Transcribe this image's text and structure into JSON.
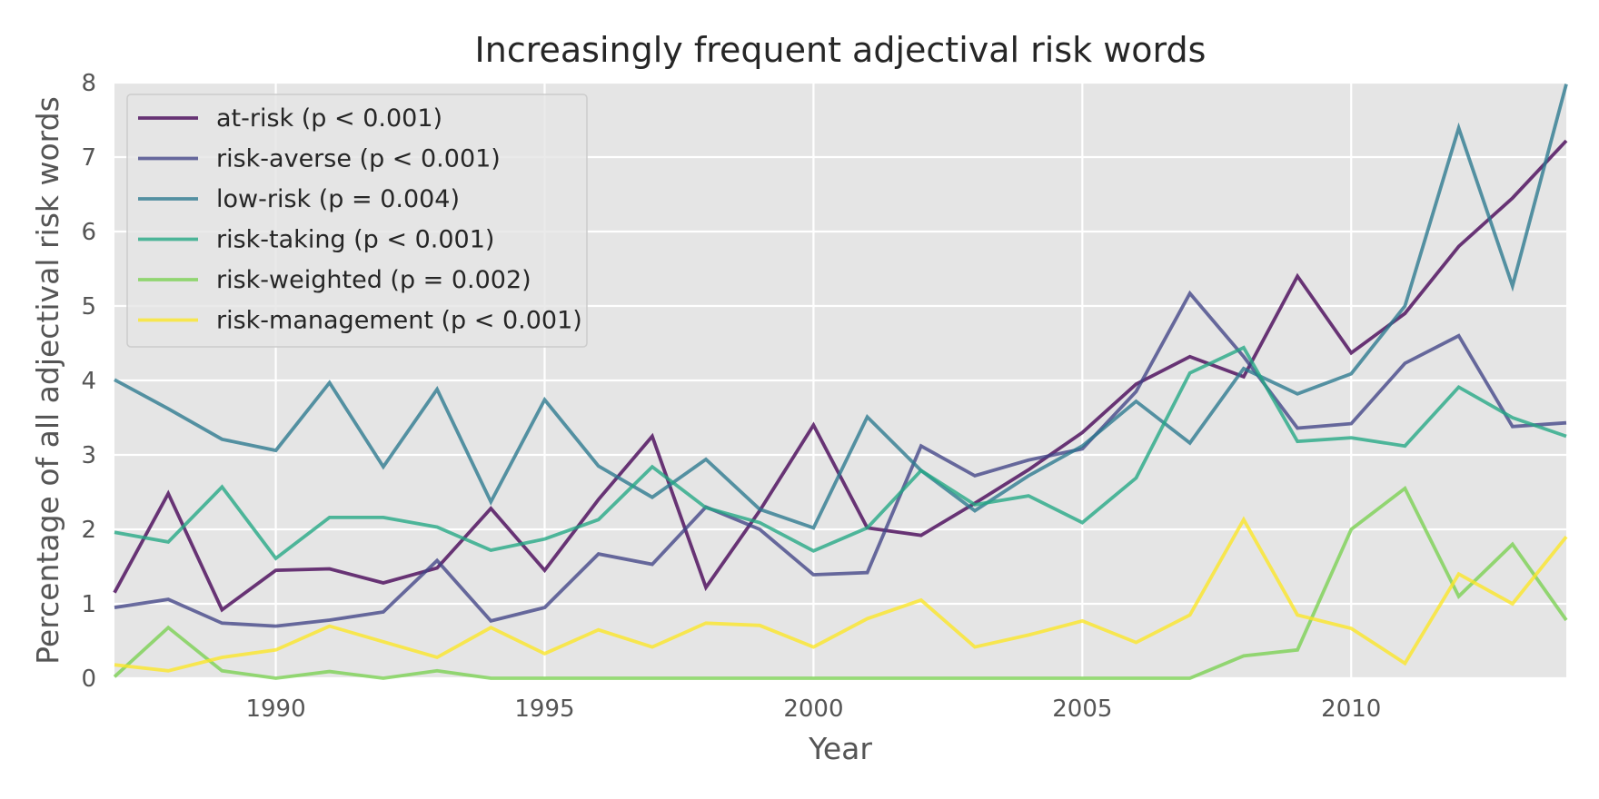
{
  "chart_data": {
    "type": "line",
    "title": "Increasingly frequent adjectival risk words",
    "xlabel": "Year",
    "ylabel": "Percentage of all adjectival risk words",
    "xlim": [
      1987,
      2014
    ],
    "ylim": [
      0,
      8
    ],
    "xticks": [
      1990,
      1995,
      2000,
      2005,
      2010
    ],
    "yticks": [
      0,
      1,
      2,
      3,
      4,
      5,
      6,
      7,
      8
    ],
    "grid": true,
    "legend_position": "top-left",
    "x": [
      1987,
      1988,
      1989,
      1990,
      1991,
      1992,
      1993,
      1994,
      1995,
      1996,
      1997,
      1998,
      1999,
      2000,
      2001,
      2002,
      2003,
      2004,
      2005,
      2006,
      2007,
      2008,
      2009,
      2010,
      2011,
      2012,
      2013,
      2014
    ],
    "series": [
      {
        "name": "at-risk (p < 0.001)",
        "color": "#440154",
        "values": [
          1.15,
          2.48,
          0.92,
          1.45,
          1.47,
          1.28,
          1.48,
          2.28,
          1.45,
          2.4,
          3.25,
          1.22,
          2.25,
          3.4,
          2.02,
          1.92,
          2.35,
          2.8,
          3.3,
          3.95,
          4.32,
          4.05,
          5.4,
          4.37,
          4.9,
          5.8,
          6.45,
          7.22
        ]
      },
      {
        "name": "risk-averse (p < 0.001)",
        "color": "#414487",
        "values": [
          0.95,
          1.06,
          0.74,
          0.7,
          0.78,
          0.89,
          1.58,
          0.77,
          0.95,
          1.67,
          1.53,
          2.3,
          2.0,
          1.39,
          1.42,
          3.12,
          2.72,
          2.93,
          3.08,
          3.85,
          5.17,
          4.32,
          3.36,
          3.42,
          4.23,
          4.6,
          3.38,
          3.43
        ]
      },
      {
        "name": "low-risk (p = 0.004)",
        "color": "#2a788e",
        "values": [
          4.01,
          3.62,
          3.21,
          3.06,
          3.97,
          2.84,
          3.88,
          2.37,
          3.74,
          2.85,
          2.43,
          2.94,
          2.27,
          2.02,
          3.51,
          2.79,
          2.25,
          2.72,
          3.12,
          3.72,
          3.16,
          4.16,
          3.82,
          4.09,
          5.0,
          7.39,
          5.27,
          7.98
        ]
      },
      {
        "name": "risk-taking (p < 0.001)",
        "color": "#22a884",
        "values": [
          1.96,
          1.83,
          2.57,
          1.61,
          2.16,
          2.16,
          2.03,
          1.72,
          1.87,
          2.13,
          2.84,
          2.29,
          2.09,
          1.71,
          2.02,
          2.79,
          2.33,
          2.45,
          2.09,
          2.69,
          4.1,
          4.44,
          3.18,
          3.23,
          3.12,
          3.91,
          3.5,
          3.25
        ]
      },
      {
        "name": "risk-weighted (p = 0.002)",
        "color": "#7ad151",
        "values": [
          0.02,
          0.68,
          0.1,
          0.0,
          0.09,
          0.0,
          0.1,
          0.0,
          0.0,
          0.0,
          0.0,
          0.0,
          0.0,
          0.0,
          0.0,
          0.0,
          0.0,
          0.0,
          0.0,
          0.0,
          0.0,
          0.3,
          0.38,
          2.0,
          2.55,
          1.1,
          1.8,
          0.78
        ]
      },
      {
        "name": "risk-management (p < 0.001)",
        "color": "#fde725",
        "values": [
          0.18,
          0.1,
          0.28,
          0.38,
          0.7,
          0.49,
          0.28,
          0.68,
          0.33,
          0.65,
          0.42,
          0.74,
          0.71,
          0.42,
          0.8,
          1.05,
          0.42,
          0.58,
          0.77,
          0.48,
          0.85,
          2.13,
          0.85,
          0.67,
          0.2,
          1.4,
          1.0,
          1.9
        ]
      }
    ]
  }
}
